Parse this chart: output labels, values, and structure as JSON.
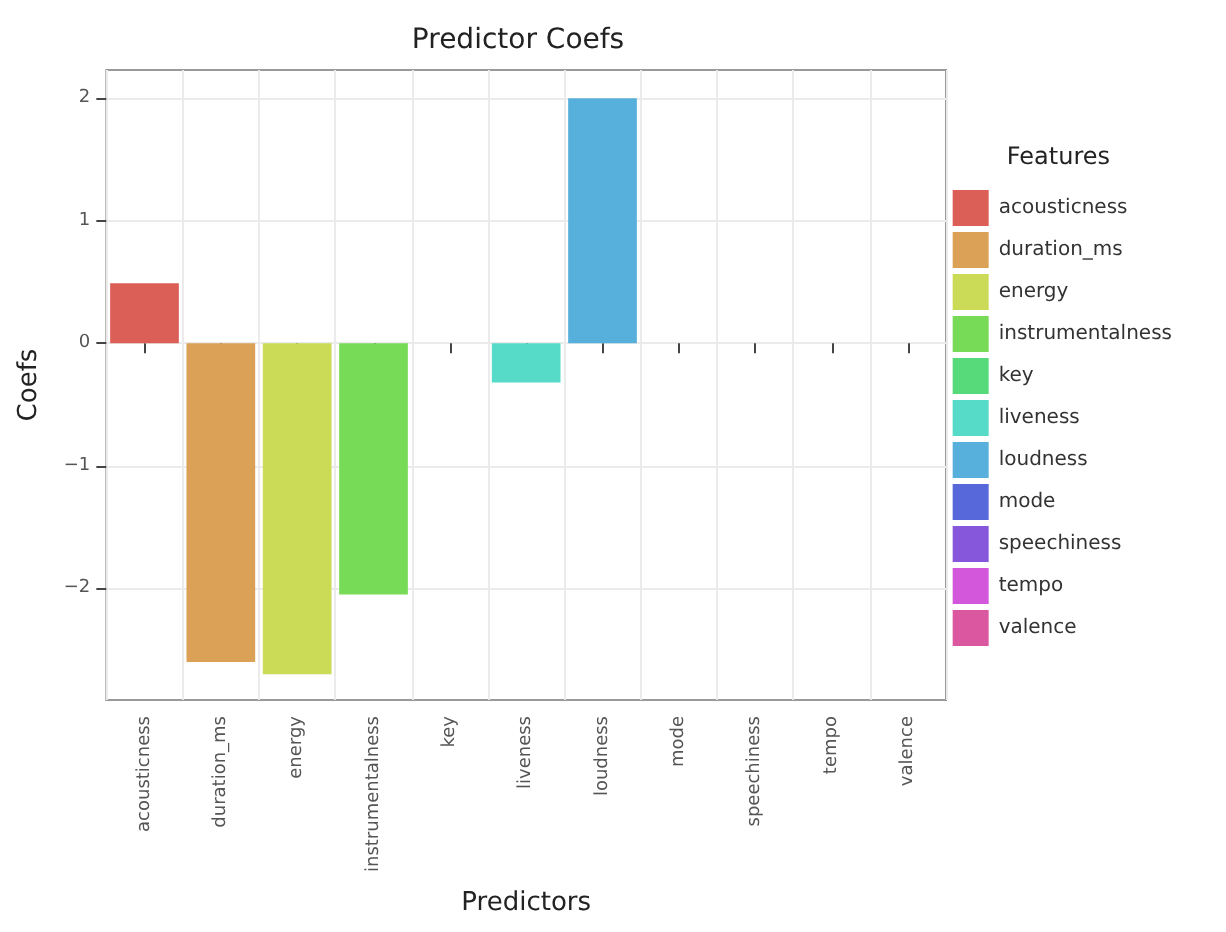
{
  "chart_data": {
    "type": "bar",
    "title": "Predictor Coefs",
    "xlabel": "Predictors",
    "ylabel": "Coefs",
    "legend_title": "Features",
    "categories": [
      "acousticness",
      "duration_ms",
      "energy",
      "instrumentalness",
      "key",
      "liveness",
      "loudness",
      "mode",
      "speechiness",
      "tempo",
      "valence"
    ],
    "series": [
      {
        "name": "acousticness",
        "color": "#db5f57",
        "values": [
          0.49,
          null,
          null,
          null,
          null,
          null,
          null,
          null,
          null,
          null,
          null
        ]
      },
      {
        "name": "duration_ms",
        "color": "#dba257",
        "values": [
          null,
          -2.6,
          null,
          null,
          null,
          null,
          null,
          null,
          null,
          null,
          null
        ]
      },
      {
        "name": "energy",
        "color": "#cbdb57",
        "values": [
          null,
          null,
          -2.7,
          null,
          null,
          null,
          null,
          null,
          null,
          null,
          null
        ]
      },
      {
        "name": "instrumentalness",
        "color": "#77db57",
        "values": [
          null,
          null,
          null,
          -2.05,
          null,
          null,
          null,
          null,
          null,
          null,
          null
        ]
      },
      {
        "name": "key",
        "color": "#57db7a",
        "values": [
          null,
          null,
          null,
          null,
          0,
          null,
          null,
          null,
          null,
          null,
          null
        ]
      },
      {
        "name": "liveness",
        "color": "#57dbc9",
        "values": [
          null,
          null,
          null,
          null,
          null,
          -0.32,
          null,
          null,
          null,
          null,
          null
        ]
      },
      {
        "name": "loudness",
        "color": "#57b0db",
        "values": [
          null,
          null,
          null,
          null,
          null,
          null,
          2.0,
          null,
          null,
          null,
          null
        ]
      },
      {
        "name": "mode",
        "color": "#5768db",
        "values": [
          null,
          null,
          null,
          null,
          null,
          null,
          null,
          0,
          null,
          null,
          null
        ]
      },
      {
        "name": "speechiness",
        "color": "#8657db",
        "values": [
          null,
          null,
          null,
          null,
          null,
          null,
          null,
          null,
          0,
          null,
          null
        ]
      },
      {
        "name": "tempo",
        "color": "#d357db",
        "values": [
          null,
          null,
          null,
          null,
          null,
          null,
          null,
          null,
          null,
          0,
          null
        ]
      },
      {
        "name": "valence",
        "color": "#db57a0",
        "values": [
          null,
          null,
          null,
          null,
          null,
          null,
          null,
          null,
          null,
          null,
          0
        ]
      }
    ],
    "ylim": [
      -2.91,
      2.23
    ],
    "yticks": [
      -2,
      -1,
      0,
      1,
      2
    ],
    "grid": true,
    "legend": "right"
  }
}
